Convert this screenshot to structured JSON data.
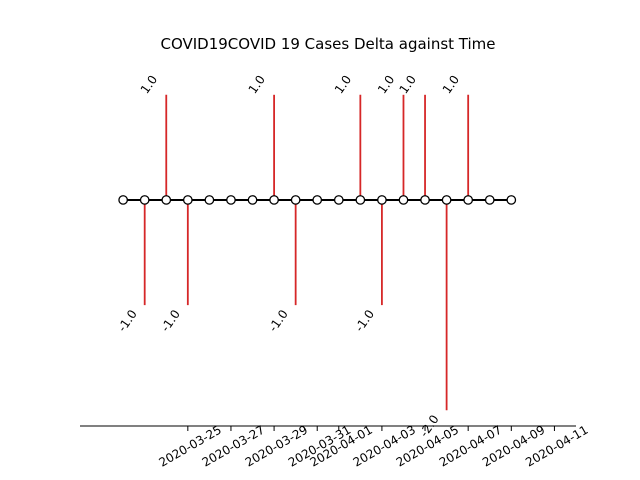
{
  "chart_data": {
    "type": "stem",
    "title": "COVID19COVID 19 Cases Delta against Time",
    "xlabel": "",
    "ylabel": "",
    "x_tick_labels": [
      "2020-03-25",
      "2020-03-27",
      "2020-03-29",
      "2020-03-31",
      "2020-04-01",
      "2020-04-03",
      "2020-04-05",
      "2020-04-07",
      "2020-04-09",
      "2020-04-11"
    ],
    "xlim": [
      "2020-03-20",
      "2020-04-12"
    ],
    "ylim": [
      -2.15,
      1.35
    ],
    "grid": false,
    "points": [
      {
        "date": "2020-03-22",
        "value": 0
      },
      {
        "date": "2020-03-23",
        "value": -1.0
      },
      {
        "date": "2020-03-24",
        "value": 1.0
      },
      {
        "date": "2020-03-25",
        "value": -1.0
      },
      {
        "date": "2020-03-26",
        "value": 0
      },
      {
        "date": "2020-03-27",
        "value": 0
      },
      {
        "date": "2020-03-28",
        "value": 0
      },
      {
        "date": "2020-03-29",
        "value": 1.0
      },
      {
        "date": "2020-03-30",
        "value": -1.0
      },
      {
        "date": "2020-03-31",
        "value": 0
      },
      {
        "date": "2020-04-01",
        "value": 0
      },
      {
        "date": "2020-04-02",
        "value": 1.0
      },
      {
        "date": "2020-04-03",
        "value": -1.0
      },
      {
        "date": "2020-04-04",
        "value": 1.0
      },
      {
        "date": "2020-04-05",
        "value": 1.0
      },
      {
        "date": "2020-04-06",
        "value": -2.0
      },
      {
        "date": "2020-04-07",
        "value": 1.0
      },
      {
        "date": "2020-04-08",
        "value": 0
      },
      {
        "date": "2020-04-09",
        "value": 0
      }
    ],
    "colors": {
      "stem": "#d62728",
      "baseline": "#000000",
      "marker_fill": "#ffffff",
      "marker_edge": "#000000"
    }
  }
}
